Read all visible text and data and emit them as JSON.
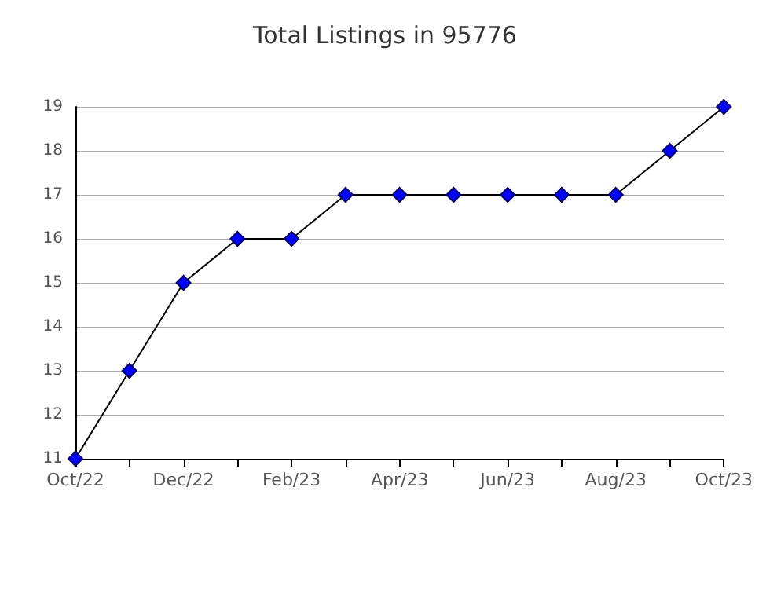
{
  "chart_data": {
    "type": "line",
    "title": "Total Listings in 95776",
    "categories": [
      "Oct/22",
      null,
      "Dec/22",
      null,
      "Feb/23",
      null,
      "Apr/23",
      null,
      "Jun/23",
      null,
      "Aug/23",
      null,
      "Oct/23"
    ],
    "series": [
      {
        "color": "#0000ff",
        "values": [
          11,
          13,
          15,
          16,
          16,
          17,
          17,
          17,
          17,
          17,
          17,
          18,
          19
        ]
      }
    ],
    "ylim": [
      11,
      19
    ],
    "yticks": [
      11,
      12,
      13,
      14,
      15,
      16,
      17,
      18,
      19
    ],
    "grid": "y",
    "marker": "diamond",
    "line_style": "solid"
  }
}
